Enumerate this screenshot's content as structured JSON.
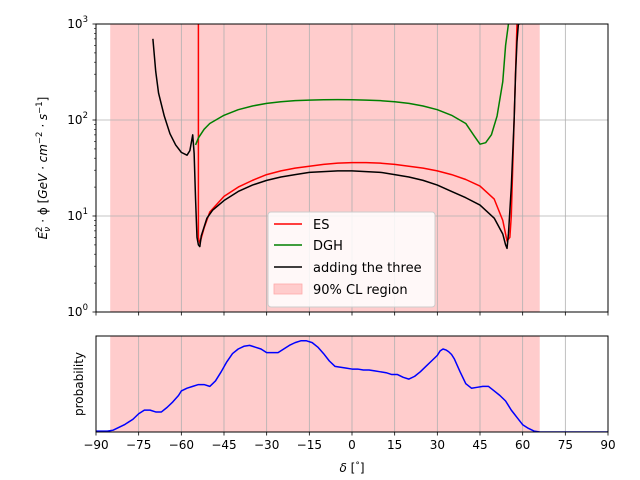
{
  "chart_data": [
    {
      "type": "line",
      "panel": "top",
      "ylabel_parts": {
        "E": "E",
        "nu": "ν",
        "two": "2",
        "rest": " · ϕ [",
        "units_a": "GeV · cm",
        "exp_a": "−2",
        "units_b": " · s",
        "exp_b": "−1",
        "close": "]"
      },
      "x_range": [
        -90,
        90
      ],
      "y_range": [
        1,
        1000
      ],
      "y_scale": "log",
      "y_ticks": [
        {
          "base": "10",
          "exp": "0"
        },
        {
          "base": "10",
          "exp": "1"
        },
        {
          "base": "10",
          "exp": "2"
        },
        {
          "base": "10",
          "exp": "3"
        }
      ],
      "grid": true,
      "shaded_region": {
        "x0": -85,
        "x1": 66,
        "color": "#ffcccc"
      },
      "legend_position": "lower-center",
      "legend": [
        {
          "label": "ES",
          "color": "#ff0000",
          "kind": "line"
        },
        {
          "label": "DGH",
          "color": "#008000",
          "kind": "line"
        },
        {
          "label": "adding the three",
          "color": "#000000",
          "kind": "line"
        },
        {
          "label": "90% CL region",
          "color": "#ffcccc",
          "kind": "patch"
        }
      ],
      "series": [
        {
          "name": "ES",
          "color": "#ff0000",
          "x": [
            -54.0,
            -54.0,
            -53.5,
            -52,
            -50,
            -45,
            -40,
            -35,
            -30,
            -25,
            -20,
            -15,
            -10,
            -5,
            0,
            5,
            10,
            15,
            20,
            25,
            30,
            35,
            40,
            45,
            50,
            53,
            54.5,
            55.5,
            56,
            57,
            58
          ],
          "y": [
            1000,
            6,
            5.2,
            7.5,
            11,
            16,
            20,
            23.5,
            27,
            29.5,
            31.5,
            33,
            34.5,
            35.5,
            36,
            36,
            35.5,
            34.5,
            33,
            31.5,
            29.5,
            27,
            24,
            20.5,
            15,
            9,
            5.5,
            6,
            10,
            100,
            1000
          ]
        },
        {
          "name": "DGH",
          "color": "#008000",
          "x": [
            -55.0,
            -54,
            -52,
            -50,
            -45,
            -40,
            -35,
            -30,
            -25,
            -20,
            -15,
            -10,
            -5,
            0,
            5,
            10,
            15,
            20,
            25,
            30,
            35,
            40,
            43,
            45,
            47,
            49,
            51,
            53,
            54,
            55
          ],
          "y": [
            55,
            65,
            80,
            92,
            112,
            128,
            140,
            149,
            155,
            159,
            161,
            162.5,
            163,
            162.5,
            161,
            159,
            155,
            149,
            140,
            128,
            112,
            92,
            68,
            56,
            58,
            70,
            110,
            250,
            600,
            1000
          ]
        },
        {
          "name": "adding the three",
          "color": "#000000",
          "x": [
            -70,
            -69,
            -68,
            -66,
            -64,
            -62,
            -60,
            -58,
            -57,
            -56,
            -55.5,
            -55,
            -54.5,
            -54,
            -53.5,
            -53,
            -51,
            -49,
            -45,
            -40,
            -35,
            -30,
            -25,
            -20,
            -15,
            -10,
            -5,
            0,
            5,
            10,
            15,
            20,
            25,
            30,
            35,
            40,
            45,
            50,
            53,
            54,
            54.5,
            55,
            56,
            57,
            57.5,
            58,
            58.5,
            59
          ],
          "y": [
            700,
            320,
            190,
            110,
            72,
            55,
            46,
            43,
            48,
            70,
            45,
            15,
            6,
            5.0,
            4.8,
            6.2,
            9.5,
            11.5,
            14.5,
            18,
            21,
            23.5,
            25.5,
            27,
            28.5,
            29,
            29.5,
            29.5,
            29,
            28.5,
            27,
            25.5,
            23.5,
            21,
            18,
            15.5,
            13,
            9.5,
            6.5,
            5,
            4.6,
            6.5,
            20,
            100,
            300,
            650,
            1000,
            1000
          ]
        }
      ]
    },
    {
      "type": "line",
      "panel": "bottom",
      "ylabel": "probability",
      "xlabel_parts": {
        "delta": "δ",
        "rest": " [",
        "deg": "°",
        "close": "]"
      },
      "x_range": [
        -90,
        90
      ],
      "x_ticks": [
        "−90",
        "−75",
        "−60",
        "−45",
        "−30",
        "−15",
        "0",
        "15",
        "30",
        "45",
        "60",
        "75",
        "90"
      ],
      "y_range": [
        0,
        1
      ],
      "grid": true,
      "shaded_region": {
        "x0": -85,
        "x1": 66,
        "color": "#ffcccc"
      },
      "series": [
        {
          "name": "",
          "color": "#0000ff",
          "x": [
            -90,
            -86,
            -84,
            -80,
            -77,
            -75,
            -73,
            -71,
            -69,
            -67,
            -65,
            -63,
            -61,
            -60,
            -58,
            -56,
            -54,
            -52,
            -50,
            -48,
            -46,
            -44,
            -42,
            -40,
            -38,
            -36,
            -34,
            -32,
            -30,
            -28,
            -26,
            -24,
            -22,
            -20,
            -18,
            -16,
            -14,
            -12,
            -10,
            -8,
            -6,
            -4,
            -2,
            0,
            2,
            4,
            6,
            8,
            10,
            12,
            14,
            16,
            18,
            20,
            22,
            24,
            26,
            28,
            30,
            31,
            32,
            33,
            34,
            35,
            36,
            38,
            40,
            42,
            44,
            46,
            48,
            50,
            52,
            54,
            56,
            57,
            58,
            60,
            62,
            64,
            66,
            70,
            75,
            80,
            85,
            90
          ],
          "y": [
            0.01,
            0.01,
            0.02,
            0.08,
            0.14,
            0.2,
            0.24,
            0.24,
            0.22,
            0.22,
            0.27,
            0.33,
            0.4,
            0.45,
            0.48,
            0.5,
            0.52,
            0.52,
            0.5,
            0.56,
            0.66,
            0.77,
            0.86,
            0.91,
            0.94,
            0.95,
            0.93,
            0.91,
            0.87,
            0.87,
            0.87,
            0.91,
            0.95,
            0.98,
            1.0,
            1.0,
            0.98,
            0.93,
            0.86,
            0.78,
            0.72,
            0.71,
            0.7,
            0.69,
            0.69,
            0.68,
            0.68,
            0.67,
            0.66,
            0.65,
            0.63,
            0.63,
            0.6,
            0.58,
            0.61,
            0.66,
            0.72,
            0.78,
            0.84,
            0.89,
            0.91,
            0.9,
            0.88,
            0.85,
            0.8,
            0.66,
            0.53,
            0.48,
            0.49,
            0.5,
            0.5,
            0.45,
            0.4,
            0.34,
            0.24,
            0.2,
            0.16,
            0.08,
            0.04,
            0.01,
            0.0,
            0.0,
            0.0,
            0.0,
            0.0,
            0.0
          ]
        }
      ]
    }
  ]
}
